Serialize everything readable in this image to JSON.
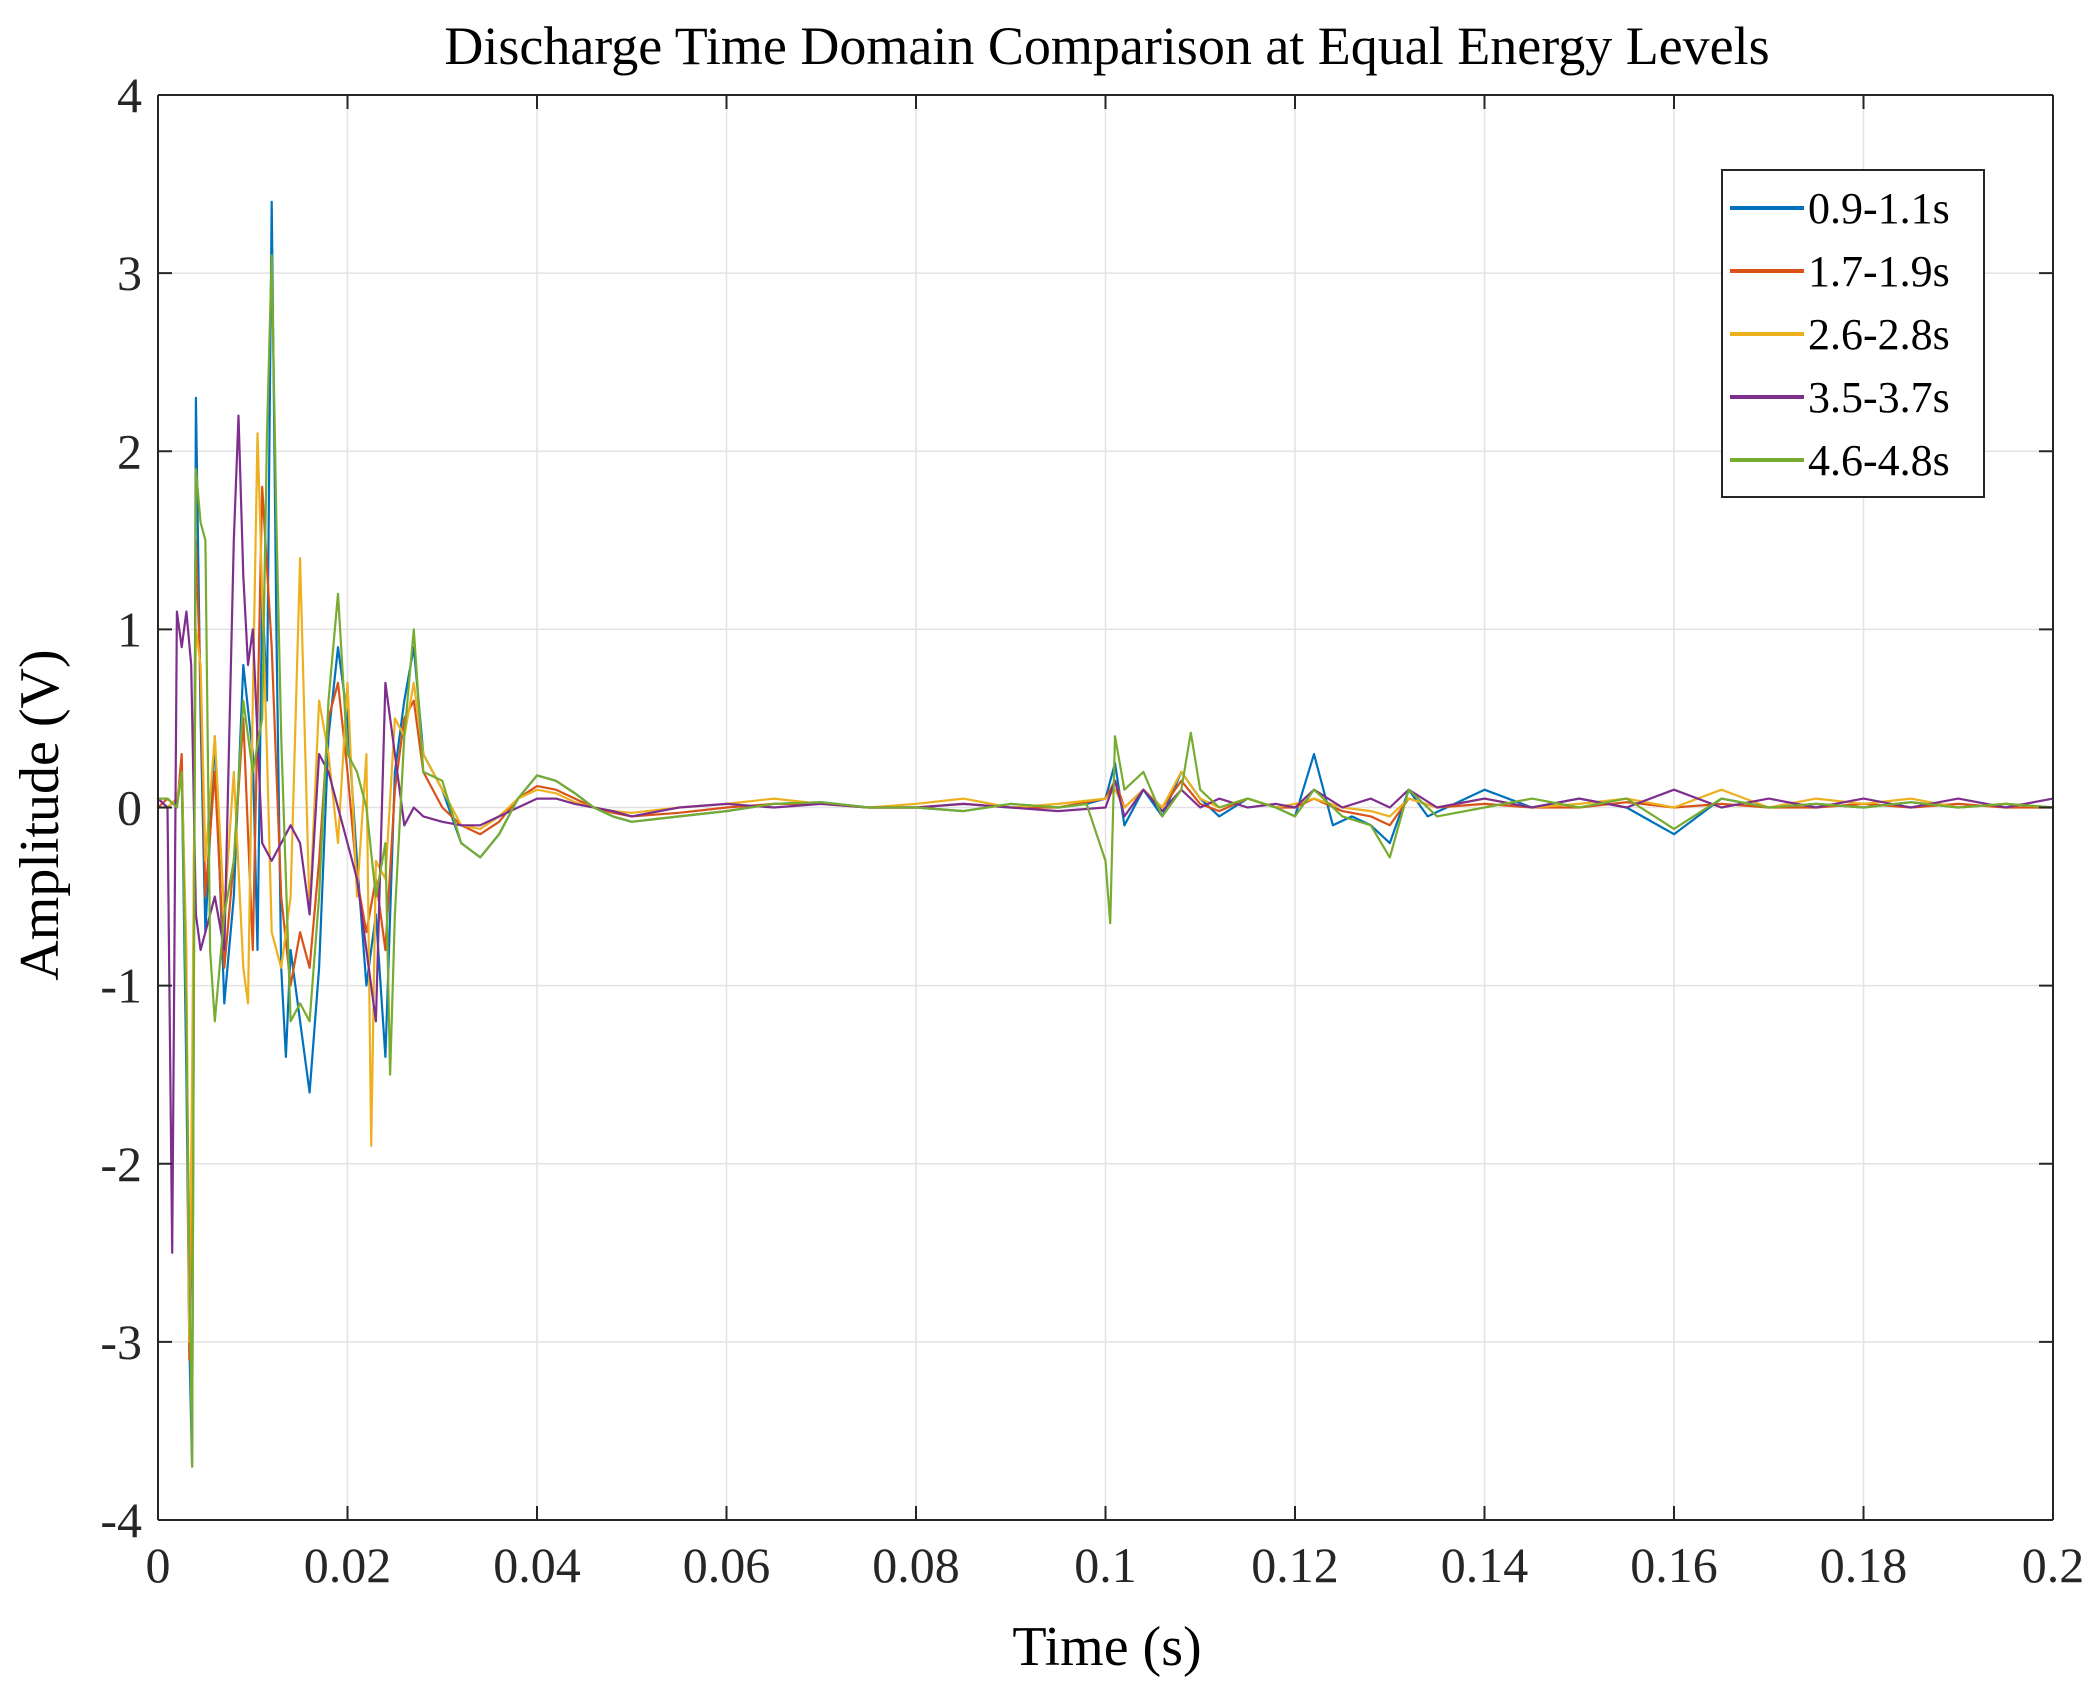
{
  "chart_data": {
    "type": "line",
    "title": "Discharge Time Domain Comparison at Equal Energy Levels",
    "xlabel": "Time (s)",
    "ylabel": "Amplitude (V)",
    "xlim": [
      0,
      0.2
    ],
    "ylim": [
      -4,
      4
    ],
    "xticks": [
      0,
      0.02,
      0.04,
      0.06,
      0.08,
      0.1,
      0.12,
      0.14,
      0.16,
      0.18,
      0.2
    ],
    "xtick_labels": [
      "0",
      "0.02",
      "0.04",
      "0.06",
      "0.08",
      "0.1",
      "0.12",
      "0.14",
      "0.16",
      "0.18",
      "0.2"
    ],
    "yticks": [
      -4,
      -3,
      -2,
      -1,
      0,
      1,
      2,
      3,
      4
    ],
    "ytick_labels": [
      "-4",
      "-3",
      "-2",
      "-1",
      "0",
      "1",
      "2",
      "3",
      "4"
    ],
    "grid": true,
    "legend_position": "top-right",
    "series": [
      {
        "name": "0.9-1.1s",
        "color": "#0072BD",
        "x": [
          0,
          0.001,
          0.002,
          0.0025,
          0.003,
          0.0033,
          0.0036,
          0.004,
          0.0045,
          0.005,
          0.006,
          0.007,
          0.008,
          0.009,
          0.01,
          0.0105,
          0.011,
          0.0115,
          0.012,
          0.0125,
          0.013,
          0.0135,
          0.014,
          0.015,
          0.016,
          0.017,
          0.018,
          0.019,
          0.02,
          0.021,
          0.022,
          0.023,
          0.024,
          0.025,
          0.026,
          0.027,
          0.028,
          0.03,
          0.032,
          0.034,
          0.036,
          0.038,
          0.04,
          0.042,
          0.044,
          0.046,
          0.048,
          0.05,
          0.055,
          0.06,
          0.065,
          0.07,
          0.075,
          0.08,
          0.085,
          0.09,
          0.095,
          0.098,
          0.1,
          0.101,
          0.102,
          0.104,
          0.106,
          0.108,
          0.11,
          0.112,
          0.115,
          0.118,
          0.12,
          0.122,
          0.124,
          0.126,
          0.128,
          0.13,
          0.132,
          0.134,
          0.136,
          0.138,
          0.14,
          0.145,
          0.15,
          0.155,
          0.16,
          0.165,
          0.17,
          0.175,
          0.18,
          0.185,
          0.19,
          0.195,
          0.2
        ],
        "values": [
          0.05,
          0.0,
          0.05,
          0.2,
          -1.5,
          -3.0,
          -3.7,
          2.3,
          0.5,
          -0.7,
          0.4,
          -1.1,
          -0.5,
          0.8,
          0.3,
          -0.8,
          1.2,
          0.6,
          3.4,
          1.0,
          -0.9,
          -1.4,
          -0.8,
          -1.2,
          -1.6,
          -0.9,
          0.4,
          0.9,
          0.5,
          -0.3,
          -1.0,
          -0.6,
          -1.4,
          0.2,
          0.6,
          0.9,
          0.3,
          0.1,
          -0.2,
          -0.28,
          -0.15,
          0.05,
          0.18,
          0.15,
          0.08,
          0.0,
          -0.05,
          -0.08,
          -0.05,
          -0.02,
          0.02,
          0.03,
          0.0,
          0.0,
          -0.02,
          0.02,
          0.0,
          0.02,
          0.05,
          0.25,
          -0.1,
          0.1,
          -0.05,
          0.2,
          0.05,
          -0.05,
          0.05,
          0.0,
          -0.05,
          0.3,
          -0.1,
          -0.05,
          -0.1,
          -0.2,
          0.1,
          -0.05,
          0.0,
          0.05,
          0.1,
          0.0,
          0.05,
          0.0,
          -0.15,
          0.05,
          0.0,
          0.02,
          0.0,
          0.03,
          0.0,
          0.02,
          0.0
        ]
      },
      {
        "name": "1.7-1.9s",
        "color": "#D95319",
        "x": [
          0,
          0.001,
          0.002,
          0.0025,
          0.003,
          0.0033,
          0.0036,
          0.004,
          0.0045,
          0.005,
          0.006,
          0.007,
          0.008,
          0.009,
          0.01,
          0.011,
          0.012,
          0.013,
          0.014,
          0.015,
          0.016,
          0.017,
          0.018,
          0.019,
          0.02,
          0.021,
          0.022,
          0.023,
          0.024,
          0.025,
          0.026,
          0.027,
          0.028,
          0.03,
          0.032,
          0.034,
          0.036,
          0.038,
          0.04,
          0.042,
          0.044,
          0.046,
          0.048,
          0.05,
          0.055,
          0.06,
          0.065,
          0.07,
          0.075,
          0.08,
          0.085,
          0.09,
          0.095,
          0.1,
          0.101,
          0.102,
          0.104,
          0.106,
          0.108,
          0.11,
          0.112,
          0.115,
          0.118,
          0.12,
          0.122,
          0.125,
          0.128,
          0.13,
          0.132,
          0.135,
          0.14,
          0.145,
          0.15,
          0.155,
          0.16,
          0.165,
          0.17,
          0.175,
          0.18,
          0.185,
          0.19,
          0.195,
          0.2
        ],
        "values": [
          0.0,
          0.05,
          0.0,
          0.3,
          -1.0,
          -3.1,
          -2.0,
          1.5,
          0.7,
          -0.5,
          0.2,
          -0.9,
          -0.3,
          0.5,
          -0.8,
          1.8,
          0.9,
          -0.5,
          -1.0,
          -0.7,
          -0.9,
          -0.3,
          0.5,
          0.7,
          0.2,
          -0.4,
          -0.7,
          -0.4,
          -0.8,
          0.1,
          0.5,
          0.6,
          0.2,
          0.0,
          -0.1,
          -0.15,
          -0.08,
          0.05,
          0.12,
          0.1,
          0.05,
          0.0,
          -0.03,
          -0.05,
          -0.03,
          0.0,
          0.02,
          0.02,
          0.0,
          0.0,
          0.02,
          0.0,
          0.0,
          0.05,
          0.15,
          0.0,
          0.1,
          0.0,
          0.15,
          0.02,
          -0.02,
          0.05,
          0.0,
          0.0,
          0.05,
          -0.02,
          -0.05,
          -0.1,
          0.05,
          0.0,
          0.02,
          0.0,
          0.0,
          0.03,
          0.0,
          0.02,
          0.0,
          0.0,
          0.02,
          0.0,
          0.02,
          0.0,
          0.0
        ]
      },
      {
        "name": "2.6-2.8s",
        "color": "#EDB120",
        "x": [
          0,
          0.001,
          0.002,
          0.0025,
          0.003,
          0.0033,
          0.0036,
          0.004,
          0.0045,
          0.005,
          0.006,
          0.007,
          0.008,
          0.009,
          0.0095,
          0.01,
          0.0105,
          0.011,
          0.0115,
          0.012,
          0.013,
          0.014,
          0.015,
          0.016,
          0.017,
          0.018,
          0.019,
          0.02,
          0.021,
          0.022,
          0.0225,
          0.023,
          0.024,
          0.025,
          0.026,
          0.027,
          0.028,
          0.03,
          0.032,
          0.034,
          0.036,
          0.038,
          0.04,
          0.042,
          0.044,
          0.046,
          0.048,
          0.05,
          0.055,
          0.06,
          0.065,
          0.07,
          0.075,
          0.08,
          0.085,
          0.09,
          0.095,
          0.1,
          0.101,
          0.102,
          0.104,
          0.106,
          0.108,
          0.11,
          0.112,
          0.115,
          0.118,
          0.12,
          0.122,
          0.125,
          0.128,
          0.13,
          0.132,
          0.135,
          0.14,
          0.145,
          0.15,
          0.155,
          0.16,
          0.165,
          0.17,
          0.175,
          0.18,
          0.185,
          0.19,
          0.195,
          0.2
        ],
        "values": [
          0.0,
          0.0,
          0.05,
          0.2,
          -0.8,
          -3.0,
          -1.5,
          1.0,
          0.8,
          -0.3,
          0.4,
          -0.6,
          0.2,
          -0.9,
          -1.1,
          0.6,
          2.1,
          1.2,
          0.3,
          -0.7,
          -0.9,
          -0.5,
          1.4,
          -0.6,
          0.6,
          0.3,
          -0.2,
          0.7,
          -0.5,
          0.3,
          -1.9,
          -0.3,
          -0.4,
          0.5,
          0.4,
          0.7,
          0.3,
          0.1,
          -0.1,
          -0.12,
          -0.05,
          0.05,
          0.1,
          0.08,
          0.03,
          0.0,
          -0.02,
          -0.03,
          0.0,
          0.02,
          0.05,
          0.02,
          0.0,
          0.02,
          0.05,
          0.0,
          0.02,
          0.05,
          0.1,
          0.0,
          0.1,
          0.0,
          0.2,
          0.05,
          0.0,
          0.05,
          0.0,
          0.02,
          0.05,
          0.0,
          -0.02,
          -0.05,
          0.05,
          0.0,
          0.05,
          0.0,
          0.02,
          0.05,
          0.0,
          0.1,
          0.0,
          0.05,
          0.02,
          0.05,
          0.0,
          0.02,
          0.0
        ]
      },
      {
        "name": "3.5-3.7s",
        "color": "#7E2F8E",
        "x": [
          0,
          0.001,
          0.0015,
          0.002,
          0.0025,
          0.003,
          0.0035,
          0.004,
          0.0045,
          0.005,
          0.006,
          0.007,
          0.008,
          0.0085,
          0.009,
          0.0095,
          0.01,
          0.011,
          0.012,
          0.013,
          0.014,
          0.015,
          0.016,
          0.017,
          0.018,
          0.019,
          0.02,
          0.021,
          0.022,
          0.023,
          0.024,
          0.025,
          0.026,
          0.027,
          0.028,
          0.03,
          0.032,
          0.034,
          0.036,
          0.038,
          0.04,
          0.042,
          0.044,
          0.046,
          0.048,
          0.05,
          0.055,
          0.06,
          0.065,
          0.07,
          0.075,
          0.08,
          0.085,
          0.09,
          0.095,
          0.1,
          0.101,
          0.102,
          0.104,
          0.106,
          0.108,
          0.11,
          0.112,
          0.115,
          0.118,
          0.12,
          0.122,
          0.125,
          0.128,
          0.13,
          0.132,
          0.135,
          0.14,
          0.145,
          0.15,
          0.155,
          0.16,
          0.165,
          0.17,
          0.175,
          0.18,
          0.185,
          0.19,
          0.195,
          0.2
        ],
        "values": [
          0.05,
          0.0,
          -2.5,
          1.1,
          0.9,
          1.1,
          0.8,
          -0.6,
          -0.8,
          -0.7,
          -0.5,
          -0.8,
          1.5,
          2.2,
          1.3,
          0.8,
          1.0,
          -0.2,
          -0.3,
          -0.2,
          -0.1,
          -0.2,
          -0.6,
          0.3,
          0.2,
          0.0,
          -0.2,
          -0.4,
          -0.8,
          -1.2,
          0.7,
          0.3,
          -0.1,
          0.0,
          -0.05,
          -0.08,
          -0.1,
          -0.1,
          -0.05,
          0.0,
          0.05,
          0.05,
          0.02,
          0.0,
          -0.02,
          -0.05,
          0.0,
          0.02,
          0.0,
          0.02,
          0.0,
          0.0,
          0.02,
          0.0,
          -0.02,
          0.0,
          0.15,
          -0.05,
          0.1,
          -0.02,
          0.1,
          0.0,
          0.05,
          0.0,
          0.02,
          0.0,
          0.1,
          0.0,
          0.05,
          0.0,
          0.1,
          0.0,
          0.05,
          0.0,
          0.05,
          0.0,
          0.1,
          0.0,
          0.05,
          0.0,
          0.05,
          0.0,
          0.05,
          0.0,
          0.05
        ]
      },
      {
        "name": "4.6-4.8s",
        "color": "#77AC30",
        "x": [
          0,
          0.001,
          0.002,
          0.0025,
          0.003,
          0.0033,
          0.0036,
          0.004,
          0.0045,
          0.005,
          0.0055,
          0.006,
          0.007,
          0.008,
          0.009,
          0.01,
          0.011,
          0.0115,
          0.012,
          0.0125,
          0.013,
          0.014,
          0.015,
          0.016,
          0.017,
          0.018,
          0.019,
          0.02,
          0.021,
          0.022,
          0.023,
          0.024,
          0.0245,
          0.025,
          0.026,
          0.027,
          0.028,
          0.03,
          0.032,
          0.034,
          0.036,
          0.038,
          0.04,
          0.042,
          0.044,
          0.046,
          0.048,
          0.05,
          0.055,
          0.06,
          0.065,
          0.07,
          0.075,
          0.08,
          0.085,
          0.09,
          0.095,
          0.098,
          0.1,
          0.1005,
          0.101,
          0.102,
          0.104,
          0.106,
          0.108,
          0.109,
          0.11,
          0.112,
          0.115,
          0.118,
          0.12,
          0.122,
          0.125,
          0.128,
          0.13,
          0.132,
          0.135,
          0.14,
          0.145,
          0.15,
          0.155,
          0.16,
          0.165,
          0.17,
          0.175,
          0.18,
          0.185,
          0.19,
          0.195,
          0.2
        ],
        "values": [
          0.05,
          0.05,
          0.0,
          0.2,
          -1.2,
          -2.5,
          -3.7,
          1.9,
          1.6,
          1.5,
          -0.8,
          -1.2,
          -0.6,
          -0.3,
          0.6,
          0.2,
          0.5,
          2.1,
          3.1,
          1.6,
          0.4,
          -1.2,
          -1.1,
          -1.2,
          -0.5,
          0.6,
          1.2,
          0.3,
          0.2,
          0.0,
          -0.5,
          -0.2,
          -1.5,
          -0.6,
          0.4,
          1.0,
          0.2,
          0.15,
          -0.2,
          -0.28,
          -0.15,
          0.05,
          0.18,
          0.15,
          0.08,
          0.0,
          -0.05,
          -0.08,
          -0.05,
          -0.02,
          0.02,
          0.03,
          0.0,
          0.0,
          -0.02,
          0.02,
          0.0,
          0.02,
          -0.3,
          -0.65,
          0.4,
          0.1,
          0.2,
          -0.05,
          0.1,
          0.42,
          0.1,
          0.0,
          0.05,
          0.0,
          -0.05,
          0.1,
          -0.05,
          -0.1,
          -0.28,
          0.1,
          -0.05,
          0.0,
          0.05,
          0.0,
          0.05,
          -0.12,
          0.05,
          0.0,
          0.02,
          0.0,
          0.03,
          0.0,
          0.02,
          0.0
        ]
      }
    ]
  }
}
